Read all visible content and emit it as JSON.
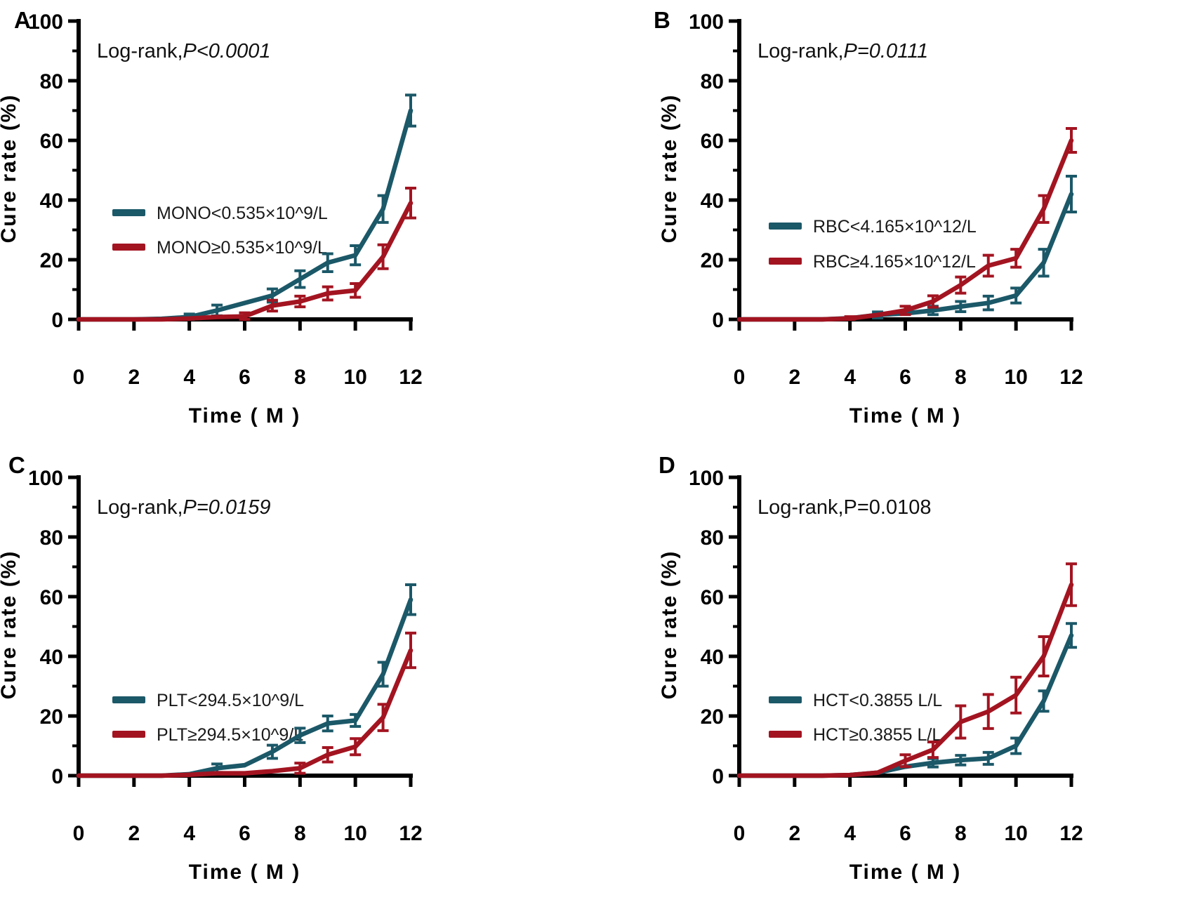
{
  "figure": {
    "background": "#ffffff",
    "axis_color": "#000000",
    "series_colors": {
      "below_cutoff": "#1B5868",
      "above_cutoff": "#A31421"
    }
  },
  "chart_data": [
    {
      "panel": "A",
      "type": "line",
      "stat": {
        "prefix": "Log-rank,",
        "value": "P<0.0001",
        "italic": true
      },
      "xlabel": "Time ( M )",
      "ylabel": "Cure rate (%)",
      "x": [
        0,
        1,
        2,
        3,
        4,
        5,
        6,
        7,
        8,
        9,
        10,
        11,
        12
      ],
      "xlim": [
        0,
        12
      ],
      "ylim": [
        0,
        100
      ],
      "xticks": [
        0,
        2,
        4,
        6,
        8,
        10,
        12
      ],
      "yticks": [
        0,
        20,
        40,
        60,
        80,
        100
      ],
      "grid": false,
      "legend_position": "inside-left",
      "series": [
        {
          "name": "MONO<0.535×10^9/L",
          "color": "#1B5868",
          "values": [
            0,
            0,
            0,
            0.2,
            0.8,
            3,
            5.5,
            8,
            13.5,
            19,
            21.5,
            37,
            70
          ],
          "errors": [
            0,
            0,
            0,
            0,
            1,
            1.8,
            0,
            2.2,
            2.8,
            3,
            3.2,
            4.5,
            5.2
          ]
        },
        {
          "name": "MONO≥0.535×10^9/L",
          "color": "#A31421",
          "values": [
            0,
            0,
            0,
            0,
            0.3,
            0.8,
            1,
            4.6,
            6,
            8.7,
            9.7,
            21,
            39
          ],
          "errors": [
            0,
            0,
            0,
            0,
            0,
            0,
            1.2,
            1.8,
            1.8,
            2.2,
            2.3,
            4,
            5
          ]
        }
      ]
    },
    {
      "panel": "B",
      "type": "line",
      "stat": {
        "prefix": "Log-rank,",
        "value": "P=0.0111",
        "italic": true
      },
      "xlabel": "Time ( M )",
      "ylabel": "Cure rate (%)",
      "x": [
        0,
        1,
        2,
        3,
        4,
        5,
        6,
        7,
        8,
        9,
        10,
        11,
        12
      ],
      "xlim": [
        0,
        12
      ],
      "ylim": [
        0,
        100
      ],
      "xticks": [
        0,
        2,
        4,
        6,
        8,
        10,
        12
      ],
      "yticks": [
        0,
        20,
        40,
        60,
        80,
        100
      ],
      "grid": false,
      "legend_position": "inside-left",
      "series": [
        {
          "name": "RBC<4.165×10^12/L",
          "color": "#1B5868",
          "values": [
            0,
            0,
            0,
            0,
            0.4,
            1.5,
            2,
            3,
            4.3,
            5.5,
            8,
            19,
            42
          ],
          "errors": [
            0,
            0,
            0,
            0,
            0,
            1,
            0,
            1.4,
            1.7,
            2.3,
            2.5,
            4.5,
            6
          ]
        },
        {
          "name": "RBC≥4.165×10^12/L",
          "color": "#A31421",
          "values": [
            0,
            0,
            0,
            0,
            0.3,
            1.5,
            3,
            6,
            11.5,
            18,
            20.5,
            37,
            60
          ],
          "errors": [
            0,
            0,
            0,
            0,
            0.6,
            0,
            1.4,
            1.9,
            2.7,
            3.5,
            3,
            4.5,
            4
          ]
        }
      ]
    },
    {
      "panel": "C",
      "type": "line",
      "stat": {
        "prefix": "Log-rank,",
        "value": "P=0.0159",
        "italic": true
      },
      "xlabel": "Time ( M )",
      "ylabel": "Cure rate (%)",
      "x": [
        0,
        1,
        2,
        3,
        4,
        5,
        6,
        7,
        8,
        9,
        10,
        11,
        12
      ],
      "xlim": [
        0,
        12
      ],
      "ylim": [
        0,
        100
      ],
      "xticks": [
        0,
        2,
        4,
        6,
        8,
        10,
        12
      ],
      "yticks": [
        0,
        20,
        40,
        60,
        80,
        100
      ],
      "grid": false,
      "legend_position": "inside-left",
      "series": [
        {
          "name": "PLT<294.5×10^9/L",
          "color": "#1B5868",
          "values": [
            0,
            0,
            0,
            0,
            0.5,
            2.5,
            3.5,
            8,
            13.5,
            17.5,
            18.5,
            34,
            59
          ],
          "errors": [
            0,
            0,
            0,
            0,
            0,
            1.4,
            0,
            2.2,
            2.4,
            2.5,
            2,
            4,
            5
          ]
        },
        {
          "name": "PLT≥294.5×10^9/L",
          "color": "#A31421",
          "values": [
            0,
            0,
            0,
            0,
            0.3,
            0.8,
            0.8,
            1.5,
            2.5,
            7,
            9.7,
            19.5,
            42
          ],
          "errors": [
            0,
            0,
            0,
            0,
            0,
            0,
            0,
            0,
            1.7,
            2.4,
            2.7,
            4.4,
            5.8
          ]
        }
      ]
    },
    {
      "panel": "D",
      "type": "line",
      "stat": {
        "prefix": "Log-rank,",
        "value": "P=0.0108",
        "italic": false
      },
      "xlabel": "Time ( M )",
      "ylabel": "Cure rate (%)",
      "x": [
        0,
        1,
        2,
        3,
        4,
        5,
        6,
        7,
        8,
        9,
        10,
        11,
        12
      ],
      "xlim": [
        0,
        12
      ],
      "ylim": [
        0,
        100
      ],
      "xticks": [
        0,
        2,
        4,
        6,
        8,
        10,
        12
      ],
      "yticks": [
        0,
        20,
        40,
        60,
        80,
        100
      ],
      "grid": false,
      "legend_position": "inside-left",
      "series": [
        {
          "name": "HCT<0.3855 L/L",
          "color": "#1B5868",
          "values": [
            0,
            0,
            0,
            0,
            0.2,
            1,
            3,
            4.3,
            5.2,
            5.8,
            10,
            25,
            47
          ],
          "errors": [
            0,
            0,
            0,
            0,
            0,
            0,
            0,
            1.4,
            1.6,
            2,
            2.6,
            3.4,
            4
          ]
        },
        {
          "name": "HCT≥0.3855 L/L",
          "color": "#A31421",
          "values": [
            0,
            0,
            0,
            0,
            0.2,
            1,
            5,
            8.7,
            18,
            21.5,
            27,
            40,
            64
          ],
          "errors": [
            0,
            0,
            0,
            0,
            0,
            0,
            2,
            2.6,
            5.4,
            5.7,
            6,
            6.6,
            7
          ]
        }
      ]
    }
  ]
}
